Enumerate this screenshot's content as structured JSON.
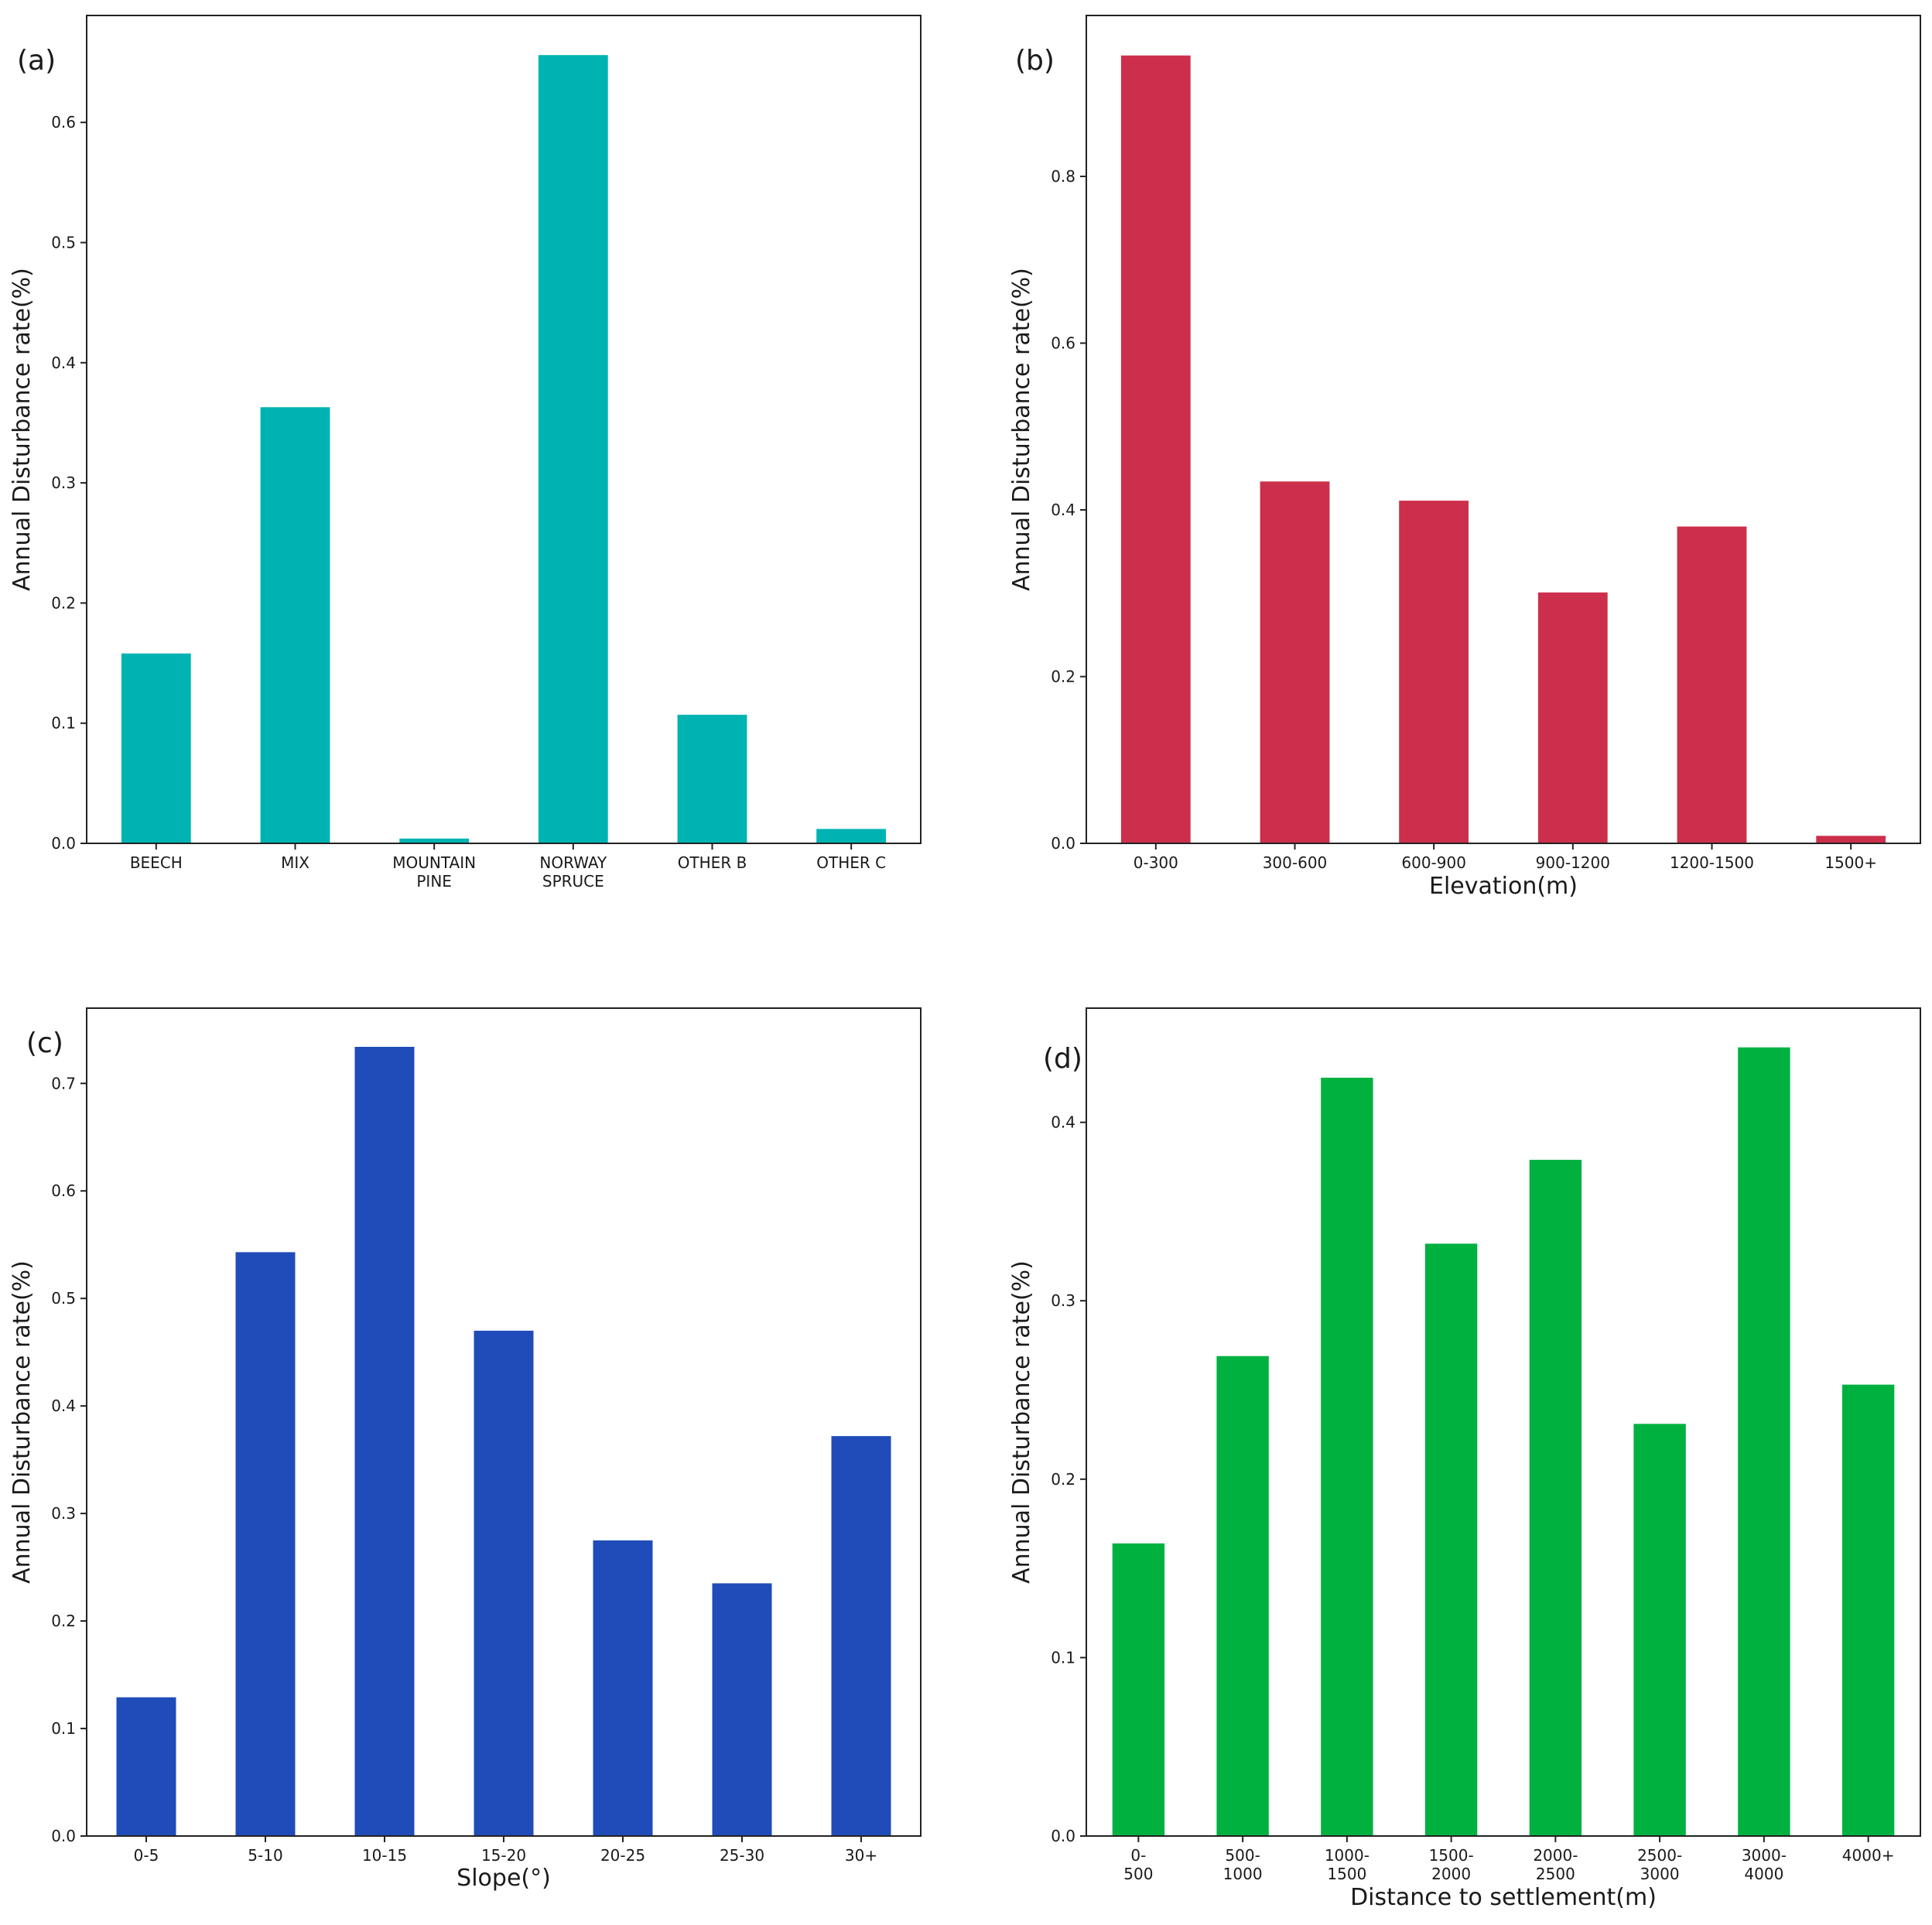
{
  "figure": {
    "ylabel": "Annual Disturbance rate(%)"
  },
  "chart_data": [
    {
      "type": "bar",
      "panel_label": "(a)",
      "title": "",
      "xlabel": "",
      "ylabel": "Annual Disturbance rate(%)",
      "color": "#00b3b3",
      "categories": [
        [
          "BEECH"
        ],
        [
          "MIX"
        ],
        [
          "MOUNTAIN",
          "PINE"
        ],
        [
          "NORWAY",
          "SPRUCE"
        ],
        [
          "OTHER B"
        ],
        [
          "OTHER C"
        ]
      ],
      "values": [
        0.158,
        0.363,
        0.004,
        0.656,
        0.107,
        0.012
      ],
      "ylim": [
        0,
        0.689
      ],
      "yticks": [
        0.0,
        0.1,
        0.2,
        0.3,
        0.4,
        0.5,
        0.6
      ],
      "ytick_labels": [
        "0.0",
        "0.1",
        "0.2",
        "0.3",
        "0.4",
        "0.5",
        "0.6"
      ]
    },
    {
      "type": "bar",
      "panel_label": "(b)",
      "title": "",
      "xlabel": "Elevation(m)",
      "ylabel": "Annual Disturbance rate(%)",
      "color": "#cc2f4b",
      "categories": [
        [
          "0-300"
        ],
        [
          "300-600"
        ],
        [
          "600-900"
        ],
        [
          "900-1200"
        ],
        [
          "1200-1500"
        ],
        [
          "1500+"
        ]
      ],
      "values": [
        0.945,
        0.434,
        0.411,
        0.301,
        0.38,
        0.009
      ],
      "ylim": [
        0,
        0.993
      ],
      "yticks": [
        0.0,
        0.2,
        0.4,
        0.6,
        0.8
      ],
      "ytick_labels": [
        "0.0",
        "0.2",
        "0.4",
        "0.6",
        "0.8"
      ]
    },
    {
      "type": "bar",
      "panel_label": "(c)",
      "title": "",
      "xlabel": "Slope(°)",
      "ylabel": "Annual Disturbance rate(%)",
      "color": "#1f4cb8",
      "categories": [
        [
          "0-5"
        ],
        [
          "5-10"
        ],
        [
          "10-15"
        ],
        [
          "15-20"
        ],
        [
          "20-25"
        ],
        [
          "25-30"
        ],
        [
          "30+"
        ]
      ],
      "values": [
        0.129,
        0.543,
        0.734,
        0.47,
        0.275,
        0.235,
        0.372
      ],
      "ylim": [
        0,
        0.77
      ],
      "yticks": [
        0.0,
        0.1,
        0.2,
        0.3,
        0.4,
        0.5,
        0.6,
        0.7
      ],
      "ytick_labels": [
        "0.0",
        "0.1",
        "0.2",
        "0.3",
        "0.4",
        "0.5",
        "0.6",
        "0.7"
      ]
    },
    {
      "type": "bar",
      "panel_label": "(d)",
      "title": "",
      "xlabel": "Distance to settlement(m)",
      "ylabel": "Annual Disturbance rate(%)",
      "color": "#00b140",
      "categories": [
        [
          "0-",
          "500"
        ],
        [
          "500-",
          "1000"
        ],
        [
          "1000-",
          "1500"
        ],
        [
          "1500-",
          "2000"
        ],
        [
          "2000-",
          "2500"
        ],
        [
          "2500-",
          "3000"
        ],
        [
          "3000-",
          "4000"
        ],
        [
          "4000+"
        ]
      ],
      "values": [
        0.164,
        0.269,
        0.425,
        0.332,
        0.379,
        0.231,
        0.442,
        0.253
      ],
      "ylim": [
        0,
        0.464
      ],
      "yticks": [
        0.0,
        0.1,
        0.2,
        0.3,
        0.4
      ],
      "ytick_labels": [
        "0.0",
        "0.1",
        "0.2",
        "0.3",
        "0.4"
      ]
    }
  ]
}
